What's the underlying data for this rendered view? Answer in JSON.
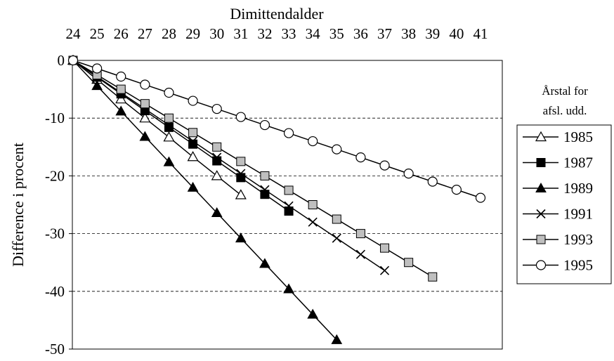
{
  "chart_data": {
    "type": "line",
    "xlabel": "Dimittendalder",
    "ylabel": "Difference i procent",
    "xlim": [
      24,
      41
    ],
    "ylim": [
      -50,
      0
    ],
    "x_ticks": [
      24,
      25,
      26,
      27,
      28,
      29,
      30,
      31,
      32,
      33,
      34,
      35,
      36,
      37,
      38,
      39,
      40,
      41
    ],
    "y_ticks": [
      0,
      -10,
      -20,
      -30,
      -40,
      -50
    ],
    "x_axis_position": "top",
    "grid": "horizontal-dashed",
    "legend_title": "Årstal for afsl. udd.",
    "legend_position": "right",
    "series": [
      {
        "name": "1985",
        "marker": "open-triangle",
        "x": [
          24,
          25,
          26,
          27,
          28,
          29,
          30,
          31
        ],
        "values": [
          0,
          -3.3,
          -6.7,
          -10,
          -13.3,
          -16.7,
          -20,
          -23.3
        ]
      },
      {
        "name": "1987",
        "marker": "filled-square",
        "x": [
          24,
          25,
          26,
          27,
          28,
          29,
          30,
          31,
          32,
          33
        ],
        "values": [
          0,
          -2.9,
          -5.8,
          -8.7,
          -11.6,
          -14.5,
          -17.4,
          -20.3,
          -23.2,
          -26.1
        ]
      },
      {
        "name": "1989",
        "marker": "filled-triangle",
        "x": [
          24,
          25,
          26,
          27,
          28,
          29,
          30,
          31,
          32,
          33,
          34,
          35
        ],
        "values": [
          0,
          -4.4,
          -8.8,
          -13.2,
          -17.6,
          -22,
          -26.4,
          -30.8,
          -35.2,
          -39.6,
          -44,
          -48.4
        ]
      },
      {
        "name": "1991",
        "marker": "x",
        "x": [
          24,
          25,
          26,
          27,
          28,
          29,
          30,
          31,
          32,
          33,
          34,
          35,
          36,
          37
        ],
        "values": [
          0,
          -2.8,
          -5.6,
          -8.4,
          -11.2,
          -14,
          -16.8,
          -19.6,
          -22.4,
          -25.2,
          -28,
          -30.8,
          -33.6,
          -36.4
        ]
      },
      {
        "name": "1993",
        "marker": "gray-square",
        "x": [
          24,
          25,
          26,
          27,
          28,
          29,
          30,
          31,
          32,
          33,
          34,
          35,
          36,
          37,
          38,
          39
        ],
        "values": [
          0,
          -2.5,
          -5,
          -7.5,
          -10,
          -12.5,
          -15,
          -17.5,
          -20,
          -22.5,
          -25,
          -27.5,
          -30,
          -32.5,
          -35,
          -37.5
        ]
      },
      {
        "name": "1995",
        "marker": "open-circle",
        "x": [
          24,
          25,
          26,
          27,
          28,
          29,
          30,
          31,
          32,
          33,
          34,
          35,
          36,
          37,
          38,
          39,
          40,
          41
        ],
        "values": [
          0,
          -1.4,
          -2.8,
          -4.2,
          -5.6,
          -7,
          -8.4,
          -9.8,
          -11.2,
          -12.6,
          -14,
          -15.4,
          -16.8,
          -18.2,
          -19.6,
          -21,
          -22.4,
          -23.8
        ]
      }
    ]
  }
}
